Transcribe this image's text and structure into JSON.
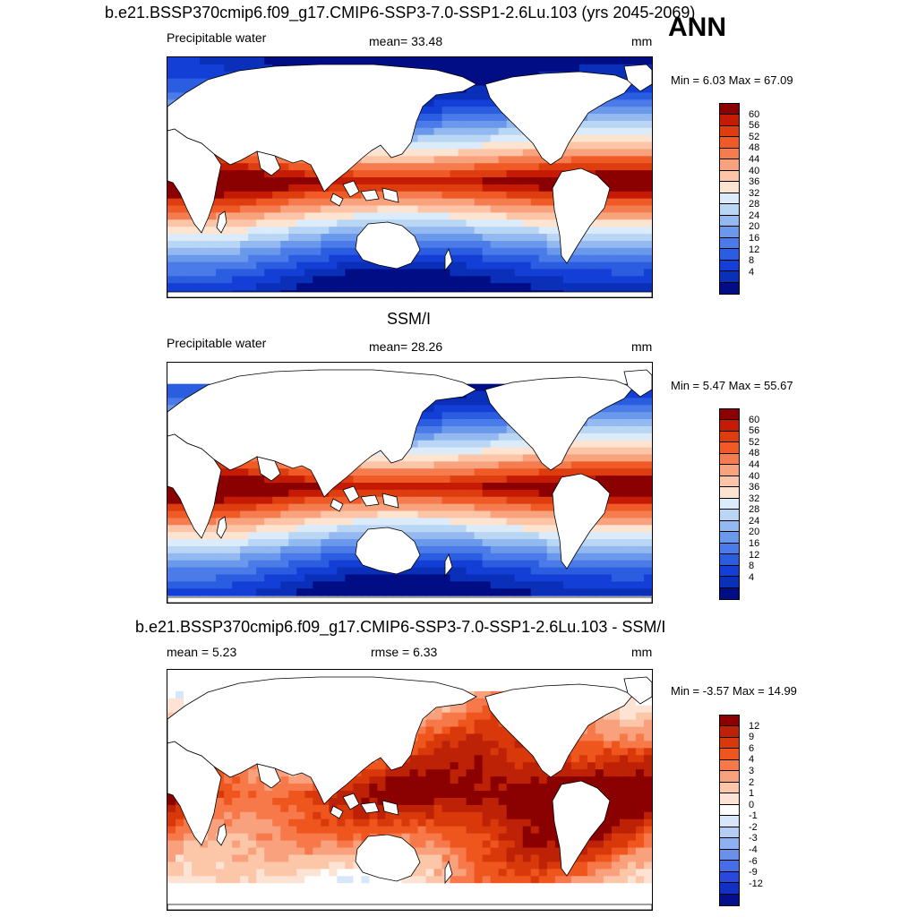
{
  "season_label": "ANN",
  "palettes": {
    "pw": [
      "#8b0000",
      "#c51b05",
      "#dd3d0f",
      "#ef5a26",
      "#f57c4e",
      "#f9a27e",
      "#fcc5a8",
      "#fde4d0",
      "#dcebfa",
      "#b9d6f5",
      "#93b9f0",
      "#6a98ea",
      "#4a7be8",
      "#2b5de0",
      "#133fd6",
      "#0a2fb9",
      "#000d85"
    ],
    "diff": [
      "#8b0000",
      "#bd2106",
      "#d9380b",
      "#ee561e",
      "#f7794a",
      "#f9a07c",
      "#fcc6a9",
      "#fde3d3",
      "#ffffff",
      "#d8e6fa",
      "#b5cdf5",
      "#8eb0f0",
      "#6a91ea",
      "#466ee6",
      "#2849dc",
      "#1230c2",
      "#040f8e"
    ]
  },
  "panels": [
    {
      "title": "b.e21.BSSP370cmip6.f09_g17.CMIP6-SSP3-7.0-SSP1-2.6Lu.103 (yrs 2045-2069)",
      "left_label": "Precipitable water",
      "center_label": "mean=  33.48",
      "units": "mm",
      "minmax": "Min =   6.03 Max =  67.09",
      "palette": "pw",
      "ticks": [
        "60",
        "56",
        "52",
        "48",
        "44",
        "40",
        "36",
        "32",
        "28",
        "24",
        "20",
        "16",
        "12",
        "8",
        "4"
      ],
      "masked": false
    },
    {
      "title": "SSM/I",
      "left_label": "Precipitable water",
      "center_label": "mean=  28.26",
      "units": "mm",
      "minmax": "Min =   5.47 Max =  55.67",
      "palette": "pw",
      "ticks": [
        "60",
        "56",
        "52",
        "48",
        "44",
        "40",
        "36",
        "32",
        "28",
        "24",
        "20",
        "16",
        "12",
        "8",
        "4"
      ],
      "masked": true
    },
    {
      "title": "b.e21.BSSP370cmip6.f09_g17.CMIP6-SSP3-7.0-SSP1-2.6Lu.103 - SSM/I",
      "left_label": "mean =   5.23",
      "center_label": "rmse =   6.33",
      "units": "mm",
      "minmax": "Min =  -3.57 Max =  14.99",
      "palette": "diff",
      "ticks": [
        "12",
        "9",
        "6",
        "4",
        "3",
        "2",
        "1",
        "0",
        "-1",
        "-2",
        "-3",
        "-4",
        "-6",
        "-9",
        "-12"
      ],
      "masked": true
    }
  ]
}
